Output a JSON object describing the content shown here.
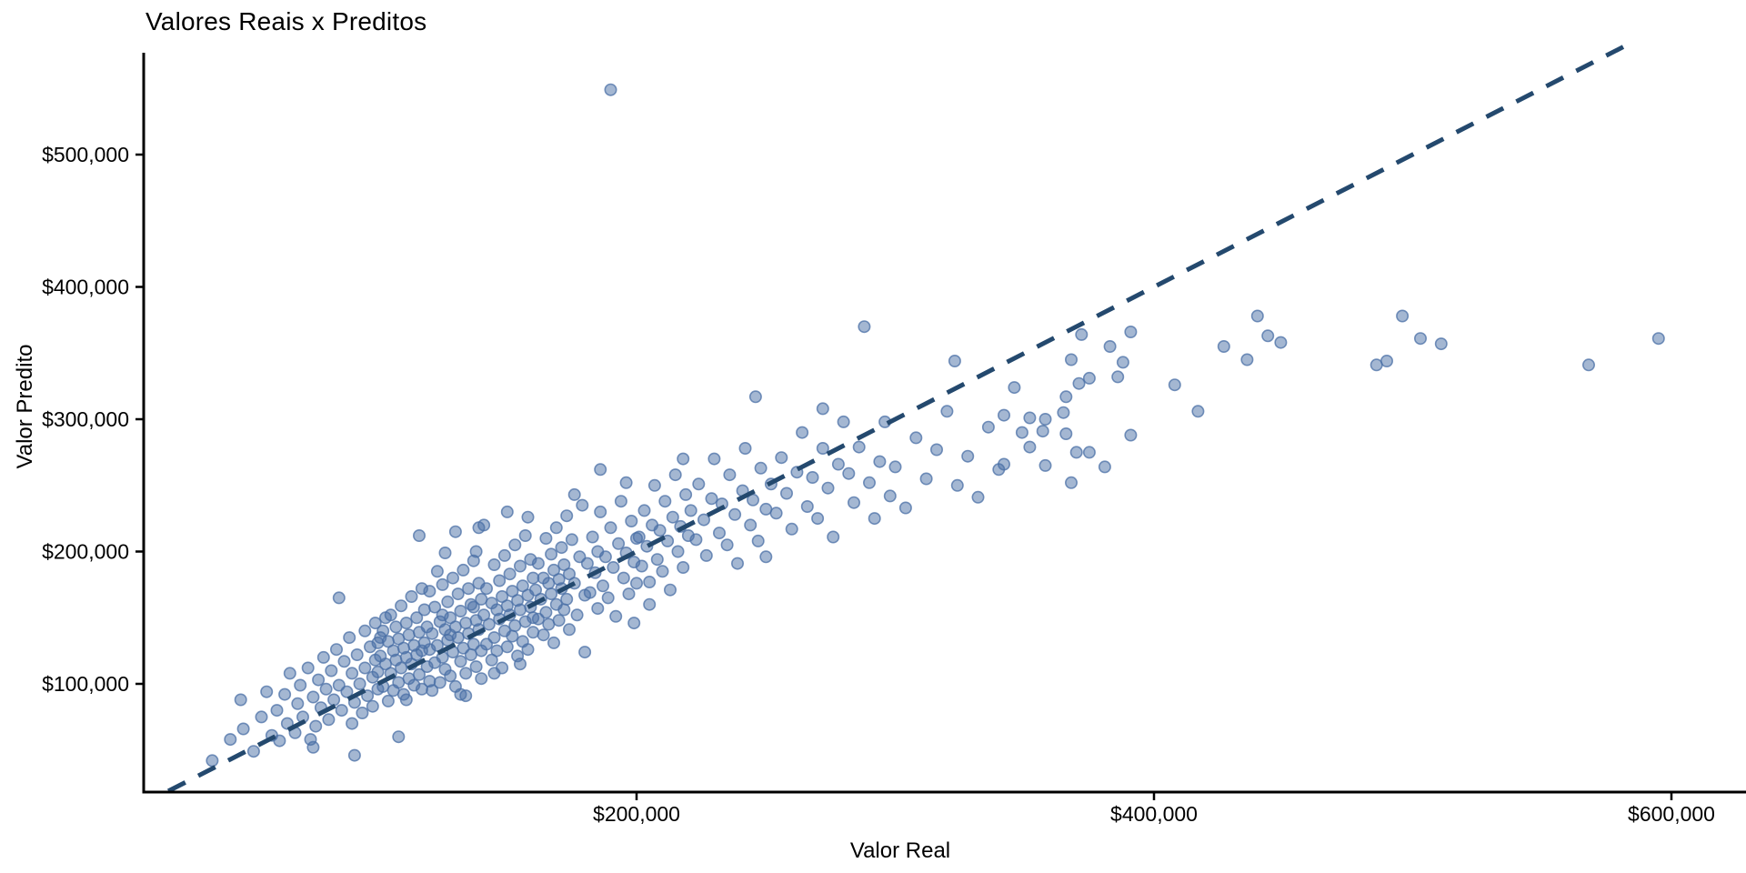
{
  "page": {
    "background": "#ffffff"
  },
  "chart_data": {
    "type": "scatter",
    "title": "Valores Reais x Preditos",
    "xlabel": "Valor Real",
    "ylabel": "Valor Predito",
    "grid": "off",
    "legend": "none",
    "xlim": [
      9500,
      629000
    ],
    "ylim": [
      19000,
      575000
    ],
    "x_ticks": [
      {
        "value": 200000,
        "label": "$200,000"
      },
      {
        "value": 400000,
        "label": "$400,000"
      },
      {
        "value": 600000,
        "label": "$600,000"
      }
    ],
    "y_ticks": [
      {
        "value": 100000,
        "label": "$100,000"
      },
      {
        "value": 200000,
        "label": "$200,000"
      },
      {
        "value": 300000,
        "label": "$300,000"
      },
      {
        "value": 400000,
        "label": "$400,000"
      },
      {
        "value": 500000,
        "label": "$500,000"
      }
    ],
    "reference_line": {
      "kind": "identity y = x",
      "from_value": 19000,
      "to_value": 583000,
      "style": "dashed",
      "color": "#24496e",
      "width": 5,
      "dash": [
        21,
        16
      ]
    },
    "point_style": {
      "fill": "#4a6fa5",
      "fill_opacity": 0.5,
      "stroke": "#4a6fa5",
      "stroke_opacity": 0.75,
      "stroke_width": 1.6,
      "radius": 6.2
    },
    "axis_color": "#000000",
    "text_color": "#000000",
    "points_units": "thousands of USD, pairs [valor_real, valor_predito]",
    "points": [
      [
        36,
        42
      ],
      [
        43,
        58
      ],
      [
        47,
        88
      ],
      [
        48,
        66
      ],
      [
        52,
        49
      ],
      [
        55,
        75
      ],
      [
        57,
        94
      ],
      [
        59,
        61
      ],
      [
        61,
        80
      ],
      [
        62,
        57
      ],
      [
        64,
        92
      ],
      [
        65,
        70
      ],
      [
        66,
        108
      ],
      [
        68,
        63
      ],
      [
        69,
        85
      ],
      [
        70,
        99
      ],
      [
        71,
        75
      ],
      [
        73,
        112
      ],
      [
        74,
        58
      ],
      [
        75,
        90
      ],
      [
        75,
        52
      ],
      [
        76,
        68
      ],
      [
        77,
        103
      ],
      [
        78,
        82
      ],
      [
        79,
        120
      ],
      [
        80,
        96
      ],
      [
        81,
        73
      ],
      [
        82,
        110
      ],
      [
        83,
        88
      ],
      [
        84,
        126
      ],
      [
        85,
        165
      ],
      [
        85,
        99
      ],
      [
        86,
        80
      ],
      [
        87,
        117
      ],
      [
        88,
        94
      ],
      [
        89,
        135
      ],
      [
        90,
        70
      ],
      [
        90,
        108
      ],
      [
        91,
        46
      ],
      [
        91,
        86
      ],
      [
        92,
        122
      ],
      [
        93,
        100
      ],
      [
        94,
        78
      ],
      [
        95,
        140
      ],
      [
        95,
        112
      ],
      [
        96,
        91
      ],
      [
        97,
        128
      ],
      [
        98,
        105
      ],
      [
        98,
        83
      ],
      [
        99,
        118
      ],
      [
        99,
        146
      ],
      [
        100,
        96
      ],
      [
        100,
        131
      ],
      [
        100,
        109
      ],
      [
        101,
        121
      ],
      [
        101,
        135
      ],
      [
        102,
        98
      ],
      [
        102,
        140
      ],
      [
        103,
        115
      ],
      [
        103,
        150
      ],
      [
        104,
        87
      ],
      [
        104,
        132
      ],
      [
        105,
        152
      ],
      [
        105,
        108
      ],
      [
        106,
        125
      ],
      [
        106,
        95
      ],
      [
        107,
        143
      ],
      [
        107,
        118
      ],
      [
        108,
        60
      ],
      [
        108,
        101
      ],
      [
        108,
        134
      ],
      [
        109,
        159
      ],
      [
        109,
        112
      ],
      [
        110,
        127
      ],
      [
        110,
        92
      ],
      [
        111,
        88
      ],
      [
        111,
        146
      ],
      [
        111,
        120
      ],
      [
        112,
        104
      ],
      [
        112,
        137
      ],
      [
        113,
        166
      ],
      [
        113,
        115
      ],
      [
        114,
        129
      ],
      [
        114,
        99
      ],
      [
        115,
        150
      ],
      [
        115,
        122
      ],
      [
        116,
        212
      ],
      [
        116,
        107
      ],
      [
        116,
        139
      ],
      [
        117,
        125
      ],
      [
        117,
        96
      ],
      [
        117,
        172
      ],
      [
        118,
        156
      ],
      [
        118,
        131
      ],
      [
        119,
        113
      ],
      [
        119,
        143
      ],
      [
        120,
        102
      ],
      [
        120,
        170
      ],
      [
        120,
        126
      ],
      [
        121,
        138
      ],
      [
        121,
        95
      ],
      [
        122,
        116
      ],
      [
        122,
        158
      ],
      [
        123,
        129
      ],
      [
        123,
        185
      ],
      [
        124,
        101
      ],
      [
        124,
        147
      ],
      [
        125,
        175
      ],
      [
        125,
        120
      ],
      [
        125,
        152
      ],
      [
        126,
        141
      ],
      [
        126,
        111
      ],
      [
        126,
        199
      ],
      [
        127,
        162
      ],
      [
        127,
        133
      ],
      [
        128,
        106
      ],
      [
        128,
        150
      ],
      [
        128,
        137
      ],
      [
        129,
        180
      ],
      [
        129,
        124
      ],
      [
        130,
        143
      ],
      [
        130,
        98
      ],
      [
        130,
        215
      ],
      [
        131,
        168
      ],
      [
        131,
        135
      ],
      [
        132,
        117
      ],
      [
        132,
        155
      ],
      [
        132,
        92
      ],
      [
        133,
        186
      ],
      [
        133,
        127
      ],
      [
        134,
        146
      ],
      [
        134,
        108
      ],
      [
        134,
        91
      ],
      [
        135,
        172
      ],
      [
        135,
        138
      ],
      [
        136,
        122
      ],
      [
        136,
        160
      ],
      [
        137,
        193
      ],
      [
        137,
        130
      ],
      [
        137,
        158
      ],
      [
        138,
        148
      ],
      [
        138,
        113
      ],
      [
        138,
        200
      ],
      [
        139,
        176
      ],
      [
        139,
        141
      ],
      [
        139,
        218
      ],
      [
        140,
        125
      ],
      [
        140,
        164
      ],
      [
        140,
        104
      ],
      [
        141,
        152
      ],
      [
        141,
        220
      ],
      [
        142,
        130
      ],
      [
        142,
        172
      ],
      [
        143,
        145
      ],
      [
        144,
        118
      ],
      [
        144,
        161
      ],
      [
        145,
        190
      ],
      [
        145,
        135
      ],
      [
        145,
        108
      ],
      [
        146,
        156
      ],
      [
        146,
        125
      ],
      [
        147,
        178
      ],
      [
        147,
        149
      ],
      [
        148,
        112
      ],
      [
        148,
        166
      ],
      [
        149,
        197
      ],
      [
        149,
        140
      ],
      [
        150,
        159
      ],
      [
        150,
        128
      ],
      [
        150,
        230
      ],
      [
        151,
        183
      ],
      [
        151,
        152
      ],
      [
        152,
        136
      ],
      [
        152,
        170
      ],
      [
        153,
        205
      ],
      [
        153,
        144
      ],
      [
        154,
        163
      ],
      [
        154,
        121
      ],
      [
        155,
        189
      ],
      [
        155,
        156
      ],
      [
        155,
        115
      ],
      [
        156,
        132
      ],
      [
        156,
        174
      ],
      [
        157,
        212
      ],
      [
        157,
        147
      ],
      [
        158,
        167
      ],
      [
        158,
        126
      ],
      [
        158,
        226
      ],
      [
        159,
        194
      ],
      [
        159,
        158
      ],
      [
        160,
        139
      ],
      [
        160,
        180
      ],
      [
        160,
        150
      ],
      [
        161,
        171
      ],
      [
        162,
        149
      ],
      [
        162,
        191
      ],
      [
        163,
        164
      ],
      [
        164,
        137
      ],
      [
        164,
        180
      ],
      [
        165,
        210
      ],
      [
        165,
        154
      ],
      [
        166,
        176
      ],
      [
        166,
        145
      ],
      [
        167,
        198
      ],
      [
        167,
        168
      ],
      [
        168,
        131
      ],
      [
        168,
        186
      ],
      [
        169,
        218
      ],
      [
        169,
        160
      ],
      [
        170,
        179
      ],
      [
        170,
        148
      ],
      [
        171,
        203
      ],
      [
        171,
        172
      ],
      [
        172,
        156
      ],
      [
        172,
        190
      ],
      [
        173,
        227
      ],
      [
        173,
        164
      ],
      [
        174,
        183
      ],
      [
        174,
        141
      ],
      [
        175,
        209
      ],
      [
        176,
        176
      ],
      [
        176,
        243
      ],
      [
        177,
        152
      ],
      [
        178,
        196
      ],
      [
        179,
        235
      ],
      [
        180,
        167
      ],
      [
        180,
        124
      ],
      [
        181,
        191
      ],
      [
        182,
        169
      ],
      [
        183,
        211
      ],
      [
        184,
        184
      ],
      [
        185,
        157
      ],
      [
        185,
        200
      ],
      [
        186,
        230
      ],
      [
        186,
        262
      ],
      [
        187,
        174
      ],
      [
        188,
        196
      ],
      [
        189,
        165
      ],
      [
        190,
        218
      ],
      [
        190,
        549
      ],
      [
        191,
        188
      ],
      [
        192,
        151
      ],
      [
        193,
        206
      ],
      [
        194,
        238
      ],
      [
        195,
        180
      ],
      [
        196,
        199
      ],
      [
        196,
        252
      ],
      [
        197,
        168
      ],
      [
        198,
        223
      ],
      [
        199,
        192
      ],
      [
        199,
        146
      ],
      [
        200,
        176
      ],
      [
        200,
        210
      ],
      [
        201,
        211
      ],
      [
        202,
        189
      ],
      [
        203,
        231
      ],
      [
        204,
        204
      ],
      [
        205,
        177
      ],
      [
        205,
        160
      ],
      [
        206,
        220
      ],
      [
        207,
        250
      ],
      [
        208,
        194
      ],
      [
        209,
        216
      ],
      [
        210,
        185
      ],
      [
        211,
        238
      ],
      [
        212,
        208
      ],
      [
        213,
        171
      ],
      [
        214,
        226
      ],
      [
        215,
        258
      ],
      [
        216,
        200
      ],
      [
        217,
        219
      ],
      [
        218,
        188
      ],
      [
        218,
        270
      ],
      [
        219,
        243
      ],
      [
        220,
        212
      ],
      [
        221,
        231
      ],
      [
        223,
        209
      ],
      [
        224,
        251
      ],
      [
        226,
        224
      ],
      [
        227,
        197
      ],
      [
        229,
        240
      ],
      [
        230,
        270
      ],
      [
        232,
        214
      ],
      [
        233,
        236
      ],
      [
        235,
        205
      ],
      [
        236,
        258
      ],
      [
        238,
        228
      ],
      [
        239,
        191
      ],
      [
        241,
        246
      ],
      [
        242,
        278
      ],
      [
        244,
        220
      ],
      [
        245,
        239
      ],
      [
        246,
        317
      ],
      [
        247,
        208
      ],
      [
        248,
        263
      ],
      [
        250,
        232
      ],
      [
        250,
        196
      ],
      [
        252,
        251
      ],
      [
        254,
        229
      ],
      [
        256,
        271
      ],
      [
        258,
        244
      ],
      [
        260,
        217
      ],
      [
        262,
        260
      ],
      [
        264,
        290
      ],
      [
        266,
        234
      ],
      [
        268,
        256
      ],
      [
        270,
        225
      ],
      [
        272,
        278
      ],
      [
        272,
        308
      ],
      [
        274,
        248
      ],
      [
        276,
        211
      ],
      [
        278,
        266
      ],
      [
        280,
        298
      ],
      [
        282,
        259
      ],
      [
        284,
        237
      ],
      [
        286,
        279
      ],
      [
        288,
        370
      ],
      [
        290,
        252
      ],
      [
        292,
        225
      ],
      [
        294,
        268
      ],
      [
        296,
        298
      ],
      [
        298,
        242
      ],
      [
        300,
        264
      ],
      [
        304,
        233
      ],
      [
        308,
        286
      ],
      [
        312,
        255
      ],
      [
        316,
        277
      ],
      [
        320,
        306
      ],
      [
        323,
        344
      ],
      [
        324,
        250
      ],
      [
        328,
        272
      ],
      [
        332,
        241
      ],
      [
        336,
        294
      ],
      [
        340,
        262
      ],
      [
        342,
        303
      ],
      [
        342,
        266
      ],
      [
        346,
        324
      ],
      [
        349,
        290
      ],
      [
        352,
        301
      ],
      [
        352,
        279
      ],
      [
        357,
        291
      ],
      [
        358,
        300
      ],
      [
        358,
        265
      ],
      [
        365,
        305
      ],
      [
        366,
        317
      ],
      [
        366,
        289
      ],
      [
        368,
        345
      ],
      [
        368,
        252
      ],
      [
        370,
        275
      ],
      [
        371,
        327
      ],
      [
        372,
        364
      ],
      [
        375,
        331
      ],
      [
        375,
        275
      ],
      [
        381,
        264
      ],
      [
        383,
        355
      ],
      [
        386,
        332
      ],
      [
        388,
        343
      ],
      [
        391,
        366
      ],
      [
        391,
        288
      ],
      [
        408,
        326
      ],
      [
        417,
        306
      ],
      [
        427,
        355
      ],
      [
        436,
        345
      ],
      [
        440,
        378
      ],
      [
        444,
        363
      ],
      [
        449,
        358
      ],
      [
        486,
        341
      ],
      [
        490,
        344
      ],
      [
        496,
        378
      ],
      [
        503,
        361
      ],
      [
        511,
        357
      ],
      [
        568,
        341
      ],
      [
        595,
        361
      ]
    ]
  }
}
